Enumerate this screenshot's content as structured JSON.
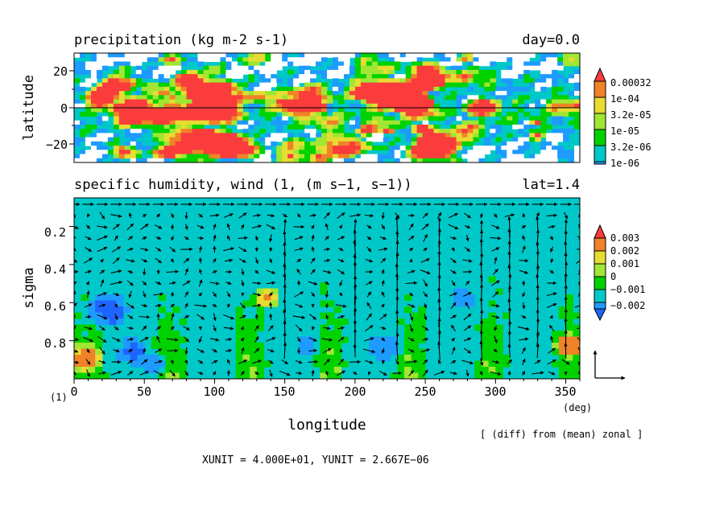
{
  "chart_data": [
    {
      "type": "heatmap",
      "title": "precipitation (kg m-2 s-1)",
      "subtitle": "day=0.0",
      "xlim": [
        0,
        360
      ],
      "ylim": [
        -30,
        30
      ],
      "ylabel": "latitude",
      "ytick_labels": [
        "20",
        "0",
        "−20"
      ],
      "legend_levels": [
        "0.00032",
        "1e-04",
        "3.2e-05",
        "1e-05",
        "3.2e-06",
        "1e-06"
      ],
      "colors": [
        "#ffffff",
        "#1e9bff",
        "#00c8c8",
        "#00d200",
        "#a0e632",
        "#e6dc32",
        "#f08228",
        "#fa3c3c"
      ]
    },
    {
      "type": "heatmap",
      "title": "specific humidity, wind (1, (m s−1, s−1))",
      "subtitle": "lat=1.4",
      "xlim": [
        0,
        360
      ],
      "ylim": [
        1,
        0.05
      ],
      "xlabel": "longitude",
      "ylabel": "sigma",
      "xtick_labels": [
        "0",
        "50",
        "100",
        "150",
        "200",
        "250",
        "300",
        "350"
      ],
      "ytick_labels": [
        "0.2",
        "0.4",
        "0.6",
        "0.8"
      ],
      "x_unit_label": "(deg)",
      "y_unit_label": "(1)",
      "legend_levels": [
        "0.003",
        "0.002",
        "0.001",
        "0",
        "−0.001",
        "−0.002"
      ],
      "colors": [
        "#1e64ff",
        "#1e9bff",
        "#00c8c8",
        "#00d200",
        "#a0e632",
        "#e6dc32",
        "#f08228",
        "#fa3c3c"
      ],
      "annotation": "[ (diff) from (mean) zonal ]",
      "units_note": "XUNIT = 4.000E+01, YUNIT = 2.667E−06"
    }
  ]
}
